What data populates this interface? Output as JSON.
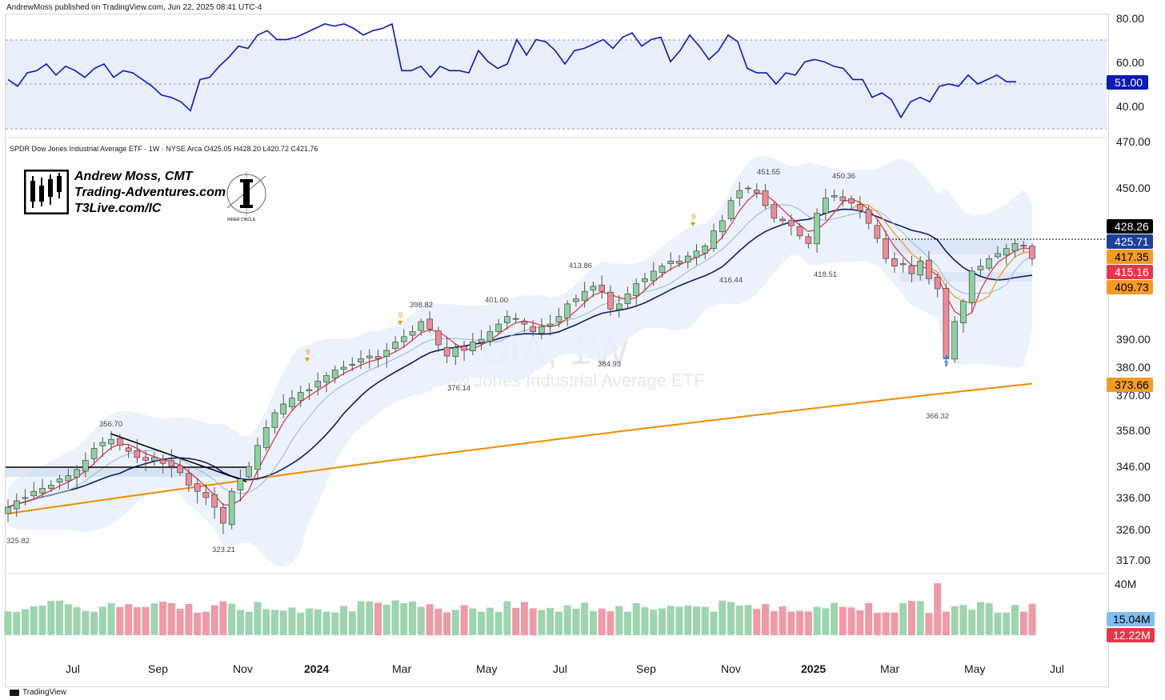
{
  "meta": {
    "published": "AndrewMoss published on TradingView.com, Jun 22, 2025 08:41 UTC-4",
    "symbol_line": "SPDR Dow Jones Industrial Average ETF · 1W · NYSE Arca  O425.05  H428.20  L420.72  C421.76",
    "footer": "TradingView"
  },
  "brand": {
    "name": "Andrew Moss, CMT",
    "site1": "Trading-Adventures.com",
    "site2": "T3Live.com/IC",
    "ic_label": "INNER CIRCLE"
  },
  "watermark": {
    "ticker": "DIA, 1W",
    "name": "SPDR Dow Jones Industrial Average ETF"
  },
  "colors": {
    "up": "#8fcfa0",
    "down": "#ef8a98",
    "rsi": "#0d1ab4",
    "ma10": "#e03a4a",
    "ma20": "#f59a23",
    "ma50": "#101c6e",
    "ma200": "#f08c00",
    "band": "#e7eef9"
  },
  "chart_data": [
    {
      "type": "line",
      "name": "RSI",
      "y_axis_labels": [
        "80.00",
        "60.00",
        "40.00"
      ],
      "levels": [
        70,
        50,
        30
      ],
      "values": [
        52,
        49,
        55,
        56,
        59,
        54,
        58,
        56,
        53,
        57,
        59,
        53,
        56,
        55,
        52,
        49,
        45,
        44,
        42,
        38,
        52,
        53,
        58,
        62,
        67,
        66,
        72,
        74,
        70,
        70,
        71,
        73,
        75,
        77,
        76,
        77,
        75,
        72,
        74,
        75,
        77,
        56,
        56,
        58,
        53,
        58,
        56,
        56,
        55,
        65,
        60,
        57,
        59,
        70,
        63,
        70,
        69,
        65,
        59,
        65,
        66,
        68,
        70,
        66,
        71,
        73,
        67,
        70,
        71,
        60,
        65,
        72,
        67,
        61,
        65,
        72,
        69,
        57,
        55,
        55,
        50,
        55,
        54,
        60,
        61,
        60,
        58,
        57,
        52,
        52,
        44,
        46,
        43,
        35,
        42,
        44,
        42,
        49,
        50,
        49,
        54,
        50,
        52,
        54,
        51,
        51
      ],
      "last_value": "51.00"
    },
    {
      "type": "candlestick",
      "name": "DIA 1W",
      "x_labels": [
        "Jul",
        "Sep",
        "Nov",
        "2024",
        "Mar",
        "May",
        "Jul",
        "Sep",
        "Nov",
        "2025",
        "Mar",
        "May",
        "Jul"
      ],
      "y_axis_labels": [
        "470.00",
        "450.00",
        "390.00",
        "380.00",
        "370.00",
        "358.00",
        "346.00",
        "336.00",
        "326.00",
        "317.00"
      ],
      "annotations": [
        "356.70",
        "325.82",
        "323.21",
        "398.82",
        "401.00",
        "376.14",
        "413.86",
        "384.93",
        "451.55",
        "416.44",
        "450.36",
        "418.51",
        "366.32"
      ],
      "seq_marks": [
        "9",
        "9",
        "9",
        "9"
      ],
      "closes": [
        333,
        335,
        336,
        338,
        339,
        340,
        342,
        343,
        345,
        348,
        352,
        354,
        355,
        353,
        351,
        349,
        348,
        349,
        347,
        346,
        344,
        340,
        338,
        336,
        333,
        328,
        338,
        342,
        346,
        353,
        359,
        364,
        367,
        369,
        371,
        372,
        375,
        377,
        379,
        380,
        381,
        383,
        384,
        383,
        386,
        389,
        391,
        393,
        397,
        394,
        388,
        384,
        387,
        386,
        389,
        390,
        393,
        396,
        399,
        398,
        396,
        393,
        395,
        396,
        399,
        404,
        406,
        409,
        411,
        409,
        402,
        404,
        408,
        412,
        414,
        417,
        419,
        421,
        421,
        423,
        425,
        427,
        433,
        437,
        445,
        449,
        450,
        448,
        443,
        438,
        437,
        435,
        431,
        428,
        440,
        446,
        447,
        445,
        444,
        441,
        436,
        430,
        422,
        419,
        420,
        416,
        421,
        414,
        410,
        383,
        397,
        405,
        417,
        419,
        422,
        424,
        426,
        428,
        427,
        422
      ]
    },
    {
      "type": "bar",
      "name": "Volume",
      "y_axis_labels": [
        "40M"
      ],
      "last_values": [
        "15.04M",
        "12.22M"
      ]
    }
  ],
  "price_tags": [
    {
      "label": "428.26",
      "bg": "#000000",
      "fg": "#ffffff"
    },
    {
      "label": "425.71",
      "bg": "#1c3f9a",
      "fg": "#ffffff"
    },
    {
      "label": "417.35",
      "bg": "#f59a23",
      "fg": "#000000"
    },
    {
      "label": "415.16",
      "bg": "#e03a4a",
      "fg": "#ffffff"
    },
    {
      "label": "409.73",
      "bg": "#f59a23",
      "fg": "#000000"
    },
    {
      "label": "373.66",
      "bg": "#f59a23",
      "fg": "#000000"
    }
  ]
}
